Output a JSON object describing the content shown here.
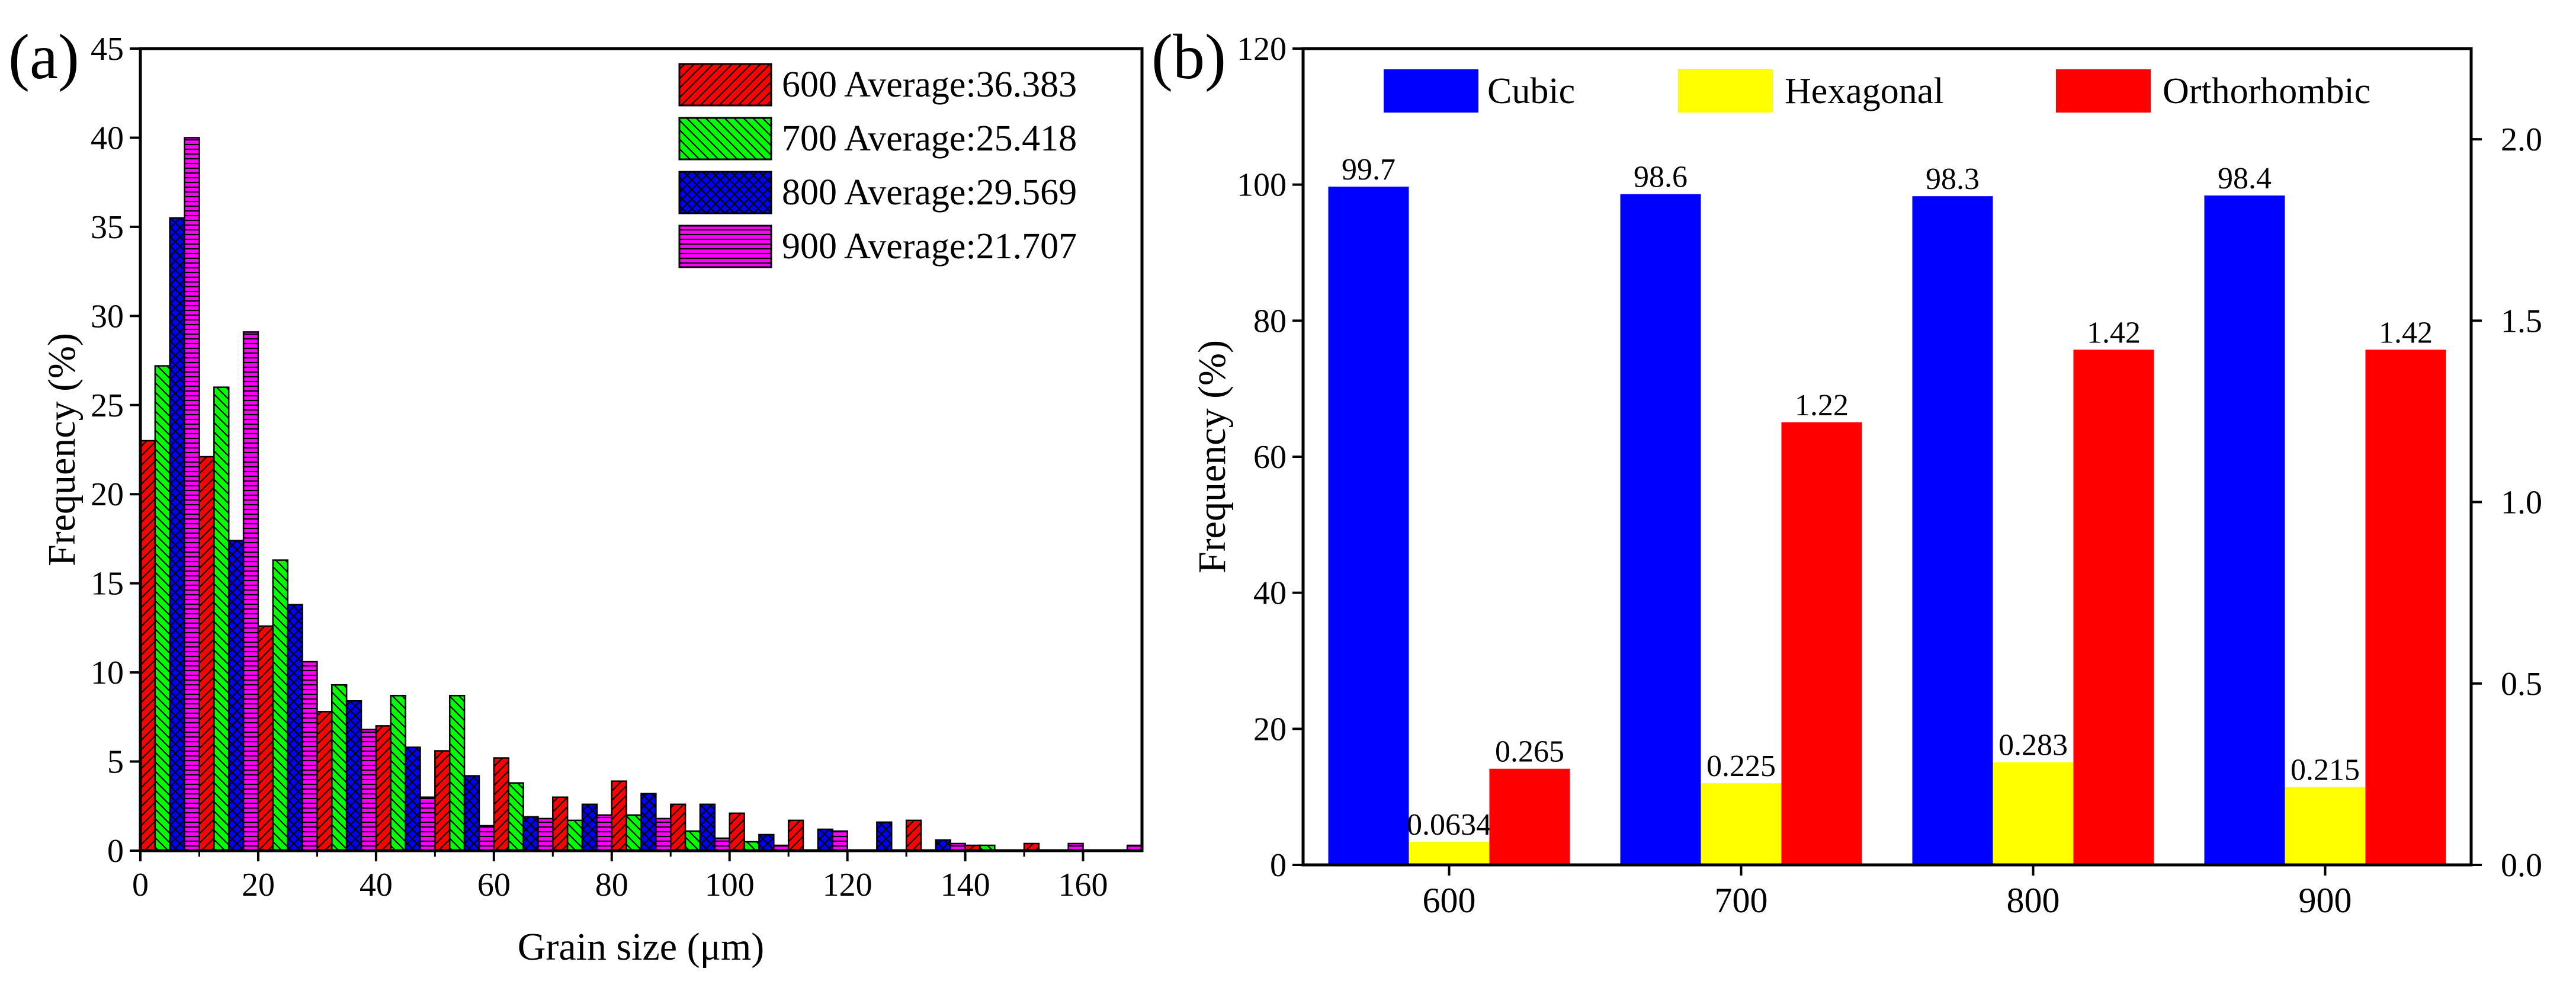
{
  "colors": {
    "c600": "#ff0000",
    "c700": "#00ff00",
    "c800": "#0000ff",
    "c900": "#ff00ff",
    "cubic": "#0000ff",
    "hexagonal": "#ffff00",
    "orthorhombic": "#ff0000",
    "axis": "#000000"
  },
  "chart_data": [
    {
      "panel_label": "(a)",
      "type": "bar",
      "title": "",
      "xlabel": "Grain size (μm)",
      "ylabel": "Frequency (%)",
      "xlim": [
        0,
        170
      ],
      "ylim": [
        0,
        45
      ],
      "xticks": [
        0,
        20,
        40,
        60,
        80,
        100,
        120,
        140,
        160
      ],
      "yticks": [
        0,
        5,
        10,
        15,
        20,
        25,
        30,
        35,
        40,
        45
      ],
      "bin_centers": [
        5,
        15,
        25,
        35,
        45,
        55,
        65,
        75,
        85,
        95,
        105,
        115,
        125,
        135,
        145,
        155,
        165
      ],
      "legend_position": "top-right",
      "series": [
        {
          "name": "600 Average:36.383",
          "color": "#ff0000",
          "hatch": "diagonal",
          "values": [
            23.0,
            22.1,
            12.6,
            7.8,
            7.0,
            5.6,
            5.2,
            3.0,
            3.9,
            2.6,
            2.1,
            1.7,
            0.0,
            1.7,
            0.3,
            0.4,
            0.0
          ]
        },
        {
          "name": "700 Average:25.418",
          "color": "#00ff00",
          "hatch": "diagonal-back",
          "values": [
            27.2,
            26.0,
            16.3,
            9.3,
            8.7,
            8.7,
            3.8,
            1.7,
            2.0,
            1.1,
            0.5,
            0.0,
            0.0,
            0.0,
            0.3,
            0.0,
            0.0
          ]
        },
        {
          "name": "800 Average:29.569",
          "color": "#0000ff",
          "hatch": "cross",
          "values": [
            35.5,
            17.4,
            13.8,
            8.4,
            5.8,
            4.2,
            1.9,
            2.6,
            3.2,
            2.6,
            0.9,
            1.2,
            1.6,
            0.6,
            0.0,
            0.0,
            0.0
          ]
        },
        {
          "name": "900 Average:21.707",
          "color": "#ff00ff",
          "hatch": "horizontal",
          "values": [
            40.0,
            29.1,
            10.6,
            6.8,
            3.0,
            1.4,
            1.8,
            2.0,
            1.8,
            0.7,
            0.3,
            1.1,
            0.0,
            0.4,
            0.0,
            0.4,
            0.3
          ]
        }
      ]
    },
    {
      "panel_label": "(b)",
      "type": "bar",
      "title": "",
      "xlabel": "",
      "ylabel": "Frequency (%)",
      "categories": [
        "600",
        "700",
        "800",
        "900"
      ],
      "ylim": [
        0,
        120
      ],
      "yticks": [
        0,
        20,
        40,
        60,
        80,
        100,
        120
      ],
      "y2lim": [
        0.0,
        2.25
      ],
      "y2ticks": [
        "0.0",
        "0.5",
        "1.0",
        "1.5",
        "2.0"
      ],
      "legend_position": "top",
      "series": [
        {
          "name": "Cubic",
          "color": "#0000ff",
          "axis": "left",
          "values": [
            99.7,
            98.6,
            98.3,
            98.4
          ],
          "labels": [
            "99.7",
            "98.6",
            "98.3",
            "98.4"
          ]
        },
        {
          "name": "Hexagonal",
          "color": "#ffff00",
          "axis": "right",
          "values": [
            0.0634,
            0.225,
            0.283,
            0.215
          ],
          "labels": [
            "0.0634",
            "0.225",
            "0.283",
            "0.215"
          ]
        },
        {
          "name": "Orthorhombic",
          "color": "#ff0000",
          "axis": "right",
          "values": [
            0.265,
            1.22,
            1.42,
            1.42
          ],
          "labels": [
            "0.265",
            "1.22",
            "1.42",
            "1.42"
          ]
        }
      ]
    }
  ]
}
